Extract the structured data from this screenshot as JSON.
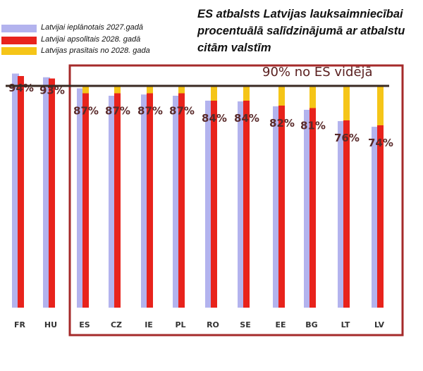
{
  "chart_data": {
    "type": "bar",
    "title": "ES atbalsts Latvijas lauksaimniecībai procentuālā salīdzinājumā ar atbalstu citām valstīm",
    "categories": [
      "FR",
      "HU",
      "ES",
      "CZ",
      "IE",
      "PL",
      "RO",
      "SE",
      "EE",
      "BG",
      "LT",
      "LV"
    ],
    "series": [
      {
        "name": "Latvijai ieplānotais 2027.gadā",
        "color": "#b3b3ee",
        "values": [
          95,
          93.5,
          89,
          86,
          86.5,
          86,
          84,
          83.7,
          81.7,
          80.3,
          75.7,
          73.4
        ]
      },
      {
        "name": "Latvijai apsolītais 2028. gadā",
        "color": "#e8231c",
        "values": [
          94,
          93,
          87,
          87,
          87,
          87,
          84,
          84,
          82,
          81,
          76,
          74
        ]
      },
      {
        "name": "Latvijas prasītais no 2028. gada",
        "color": "#f5c518",
        "values": [
          null,
          null,
          90,
          90,
          90,
          90,
          90,
          90,
          90,
          90,
          90,
          90
        ]
      }
    ],
    "data_labels": [
      "94%",
      "93%",
      "87%",
      "87%",
      "87%",
      "87%",
      "84%",
      "84%",
      "82%",
      "81%",
      "76%",
      "74%"
    ],
    "reference_line": {
      "value": 90,
      "label": "90% no ES vidējā"
    },
    "highlighted_categories": [
      "ES",
      "CZ",
      "IE",
      "PL",
      "RO",
      "SE",
      "EE",
      "BG",
      "LT",
      "LV"
    ],
    "ylim": [
      0,
      100
    ],
    "xlabel": "",
    "ylabel": "",
    "legend_position": "top-left",
    "grid": false
  }
}
